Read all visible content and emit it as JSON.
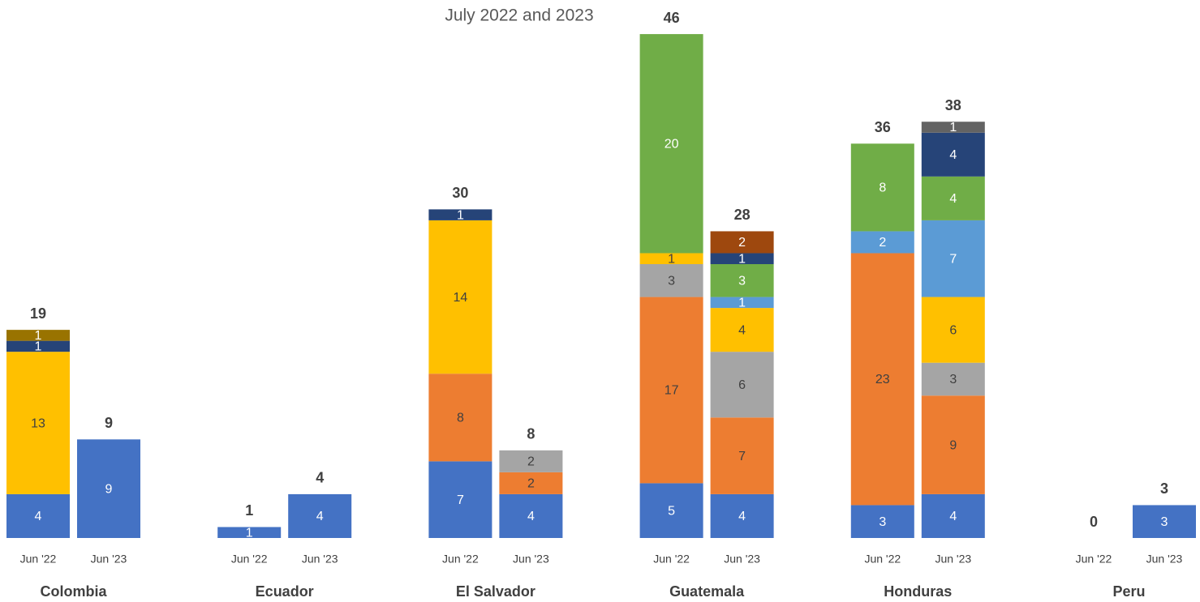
{
  "chart_data": {
    "type": "stacked_bar",
    "title": "July 2022 and 2023",
    "groups": [
      "Colombia",
      "Ecuador",
      "El Salvador",
      "Guatemala",
      "Honduras",
      "Peru"
    ],
    "categories": [
      "Jun '22",
      "Jun '23",
      "Jun '22",
      "Jun '23",
      "Jun '22",
      "Jun '23",
      "Jun '22",
      "Jun '23",
      "Jun '22",
      "Jun '23",
      "Jun '22",
      "Jun '23"
    ],
    "series": [
      {
        "color": "#4472c4",
        "label_color": "#ffffff",
        "values": [
          4,
          9,
          1,
          4,
          7,
          4,
          5,
          4,
          3,
          4,
          null,
          3
        ]
      },
      {
        "color": "#ed7d31",
        "label_color": "#404040",
        "values": [
          null,
          null,
          null,
          null,
          8,
          2,
          17,
          7,
          23,
          9,
          null,
          null
        ]
      },
      {
        "color": "#a5a5a5",
        "label_color": "#404040",
        "values": [
          null,
          null,
          null,
          null,
          null,
          2,
          3,
          6,
          null,
          3,
          null,
          null
        ]
      },
      {
        "color": "#ffc000",
        "label_color": "#404040",
        "values": [
          13,
          null,
          null,
          null,
          14,
          null,
          1,
          4,
          null,
          6,
          null,
          null
        ]
      },
      {
        "color": "#5b9bd5",
        "label_color": "#ffffff",
        "values": [
          null,
          null,
          null,
          null,
          null,
          null,
          null,
          1,
          2,
          7,
          null,
          null
        ]
      },
      {
        "color": "#70ad47",
        "label_color": "#ffffff",
        "values": [
          null,
          null,
          null,
          null,
          null,
          null,
          20,
          3,
          8,
          4,
          null,
          null
        ]
      },
      {
        "color": "#264478",
        "label_color": "#ffffff",
        "values": [
          1,
          null,
          null,
          null,
          1,
          null,
          null,
          1,
          null,
          4,
          null,
          null
        ]
      },
      {
        "color": "#9e480e",
        "label_color": "#ffffff",
        "values": [
          null,
          null,
          null,
          null,
          null,
          null,
          null,
          2,
          null,
          null,
          null,
          null
        ]
      },
      {
        "color": "#636363",
        "label_color": "#ffffff",
        "values": [
          null,
          null,
          null,
          null,
          null,
          null,
          null,
          null,
          null,
          1,
          null,
          null
        ]
      },
      {
        "color": "#997300",
        "label_color": "#ffffff",
        "values": [
          1,
          null,
          null,
          null,
          null,
          null,
          null,
          null,
          null,
          null,
          null,
          null
        ]
      }
    ],
    "totals": [
      19,
      9,
      1,
      4,
      30,
      8,
      46,
      28,
      36,
      38,
      0,
      3
    ]
  }
}
